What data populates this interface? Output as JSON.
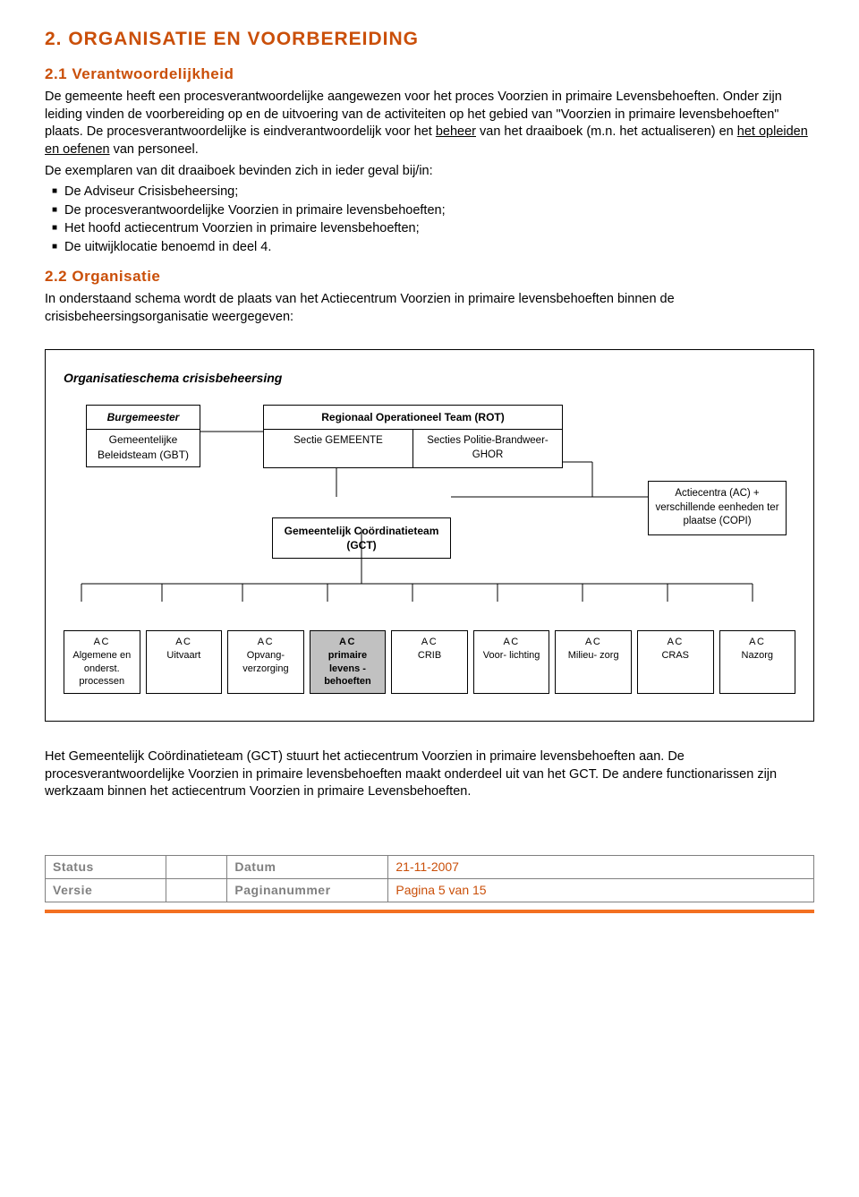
{
  "heading": "2. ORGANISATIE EN VOORBEREIDING",
  "sub1": "2.1 Verantwoordelijkheid",
  "p1a": "De gemeente heeft een procesverantwoordelijke aangewezen voor het proces Voorzien in primaire Levensbehoeften. Onder zijn leiding vinden de voorbereiding op en de uitvoering van de activiteiten op het gebied van \"Voorzien in primaire levensbehoeften\" plaats. De procesverantwoordelijke is eindverantwoordelijk voor het ",
  "p1_u1": "beheer",
  "p1b": " van het draaiboek (m.n. het actualiseren) en ",
  "p1_u2": "het opleiden en oefenen",
  "p1c": " van personeel.",
  "p2": "De exemplaren van dit draaiboek bevinden zich in ieder geval bij/in:",
  "bullets": [
    "De Adviseur Crisisbeheersing;",
    "De procesverantwoordelijke Voorzien in primaire levensbehoeften;",
    "Het hoofd actiecentrum Voorzien in primaire levensbehoeften;",
    "De uitwijklocatie benoemd in deel 4."
  ],
  "sub2": "2.2 Organisatie",
  "p3": "In onderstaand schema wordt de plaats van het Actiecentrum Voorzien in primaire levensbehoeften binnen de crisisbeheersingsorganisatie weergegeven:",
  "org": {
    "title": "Organisatieschema crisisbeheersing",
    "burg_top": "Burgemeester",
    "burg_bottom": "Gemeentelijke Beleidsteam (GBT)",
    "rot_top": "Regionaal Operationeel Team (ROT)",
    "rot_left": "Sectie GEMEENTE",
    "rot_right": "Secties Politie-Brandweer-GHOR",
    "actiecentra": "Actiecentra (AC) + verschillende eenheden ter plaatse (COPI)",
    "gct": "Gemeentelijk Coördinatieteam (GCT)",
    "ac": [
      {
        "l1": "AC",
        "l2": "Algemene en onderst. processen"
      },
      {
        "l1": "AC",
        "l2": "Uitvaart"
      },
      {
        "l1": "AC",
        "l2": "Opvang- verzorging"
      },
      {
        "l1": "AC",
        "l2": "primaire levens - behoeften",
        "hl": true
      },
      {
        "l1": "AC",
        "l2": "CRIB"
      },
      {
        "l1": "AC",
        "l2": "Voor- lichting"
      },
      {
        "l1": "AC",
        "l2": "Milieu- zorg"
      },
      {
        "l1": "AC",
        "l2": "CRAS"
      },
      {
        "l1": "AC",
        "l2": "Nazorg"
      }
    ]
  },
  "p4": "Het Gemeentelijk Coördinatieteam (GCT) stuurt het actiecentrum Voorzien in primaire levensbehoeften aan. De procesverantwoordelijke Voorzien in primaire levensbehoeften maakt onderdeel uit van het GCT. De andere functionarissen zijn werkzaam binnen het actiecentrum Voorzien in primaire Levensbehoeften.",
  "footer": {
    "status_label": "Status",
    "datum_label": "Datum",
    "datum_val": "21-11-2007",
    "versie_label": "Versie",
    "pagina_label": "Paginanummer",
    "pagina_val": "Pagina 5 van 15"
  },
  "colors": {
    "heading": "#ca4f09",
    "bar": "#f37021",
    "highlight_bg": "#c1c1c1",
    "grey": "#808080"
  }
}
